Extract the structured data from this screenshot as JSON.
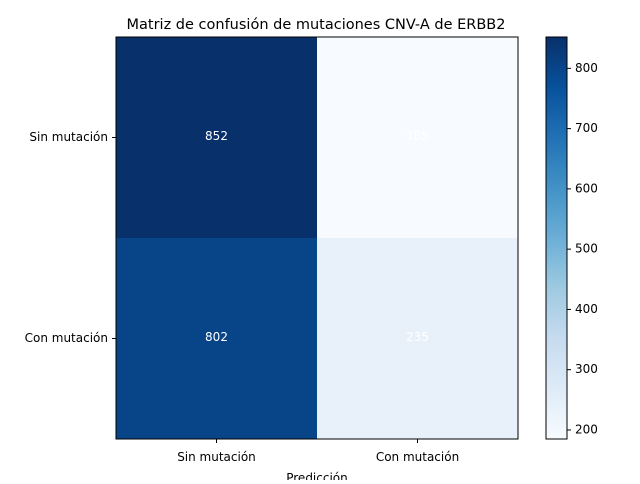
{
  "chart_data": {
    "type": "heatmap",
    "title": "Matriz de confusión de mutaciones CNV-A de ERBB2",
    "xlabel": "Predicción",
    "ylabel": "",
    "row_labels": [
      "Sin mutación",
      "Con mutación"
    ],
    "col_labels": [
      "Sin mutación",
      "Con mutación"
    ],
    "values": [
      [
        852,
        185
      ],
      [
        802,
        235
      ]
    ],
    "colormap": "Blues",
    "colorbar": {
      "range": [
        185,
        852
      ],
      "ticks": [
        200,
        300,
        400,
        500,
        600,
        700,
        800
      ]
    },
    "cell_text_color": "#ffffff",
    "grid": false
  }
}
